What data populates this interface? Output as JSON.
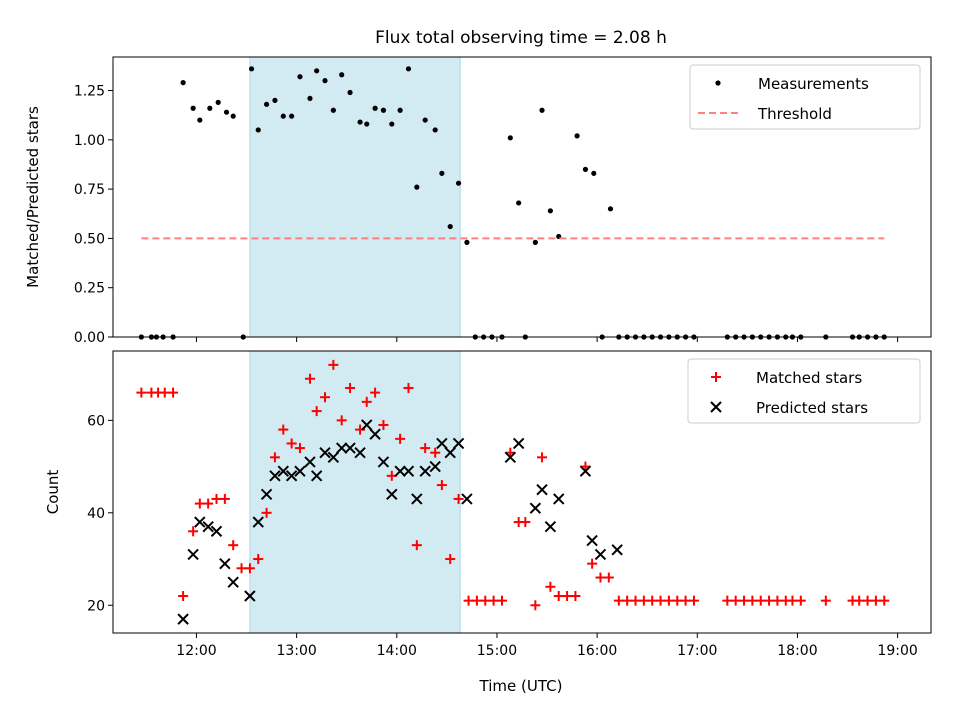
{
  "title": "Flux total observing time = 2.08 h",
  "colors": {
    "measurement": "#000000",
    "threshold": "#ff8080",
    "matched": "#ff0000",
    "predicted": "#000000",
    "shade": "#add8e6"
  },
  "chart_data": [
    {
      "type": "scatter",
      "panel": "top",
      "ylabel": "Matched/Predicted stars",
      "xlim": [
        "11:10",
        "19:20"
      ],
      "ylim": [
        0,
        1.42
      ],
      "yticks": [
        0.0,
        0.25,
        0.5,
        0.75,
        1.0,
        1.25
      ],
      "ytick_labels": [
        "0.00",
        "0.25",
        "0.50",
        "0.75",
        "1.00",
        "1.25"
      ],
      "shaded_interval": [
        "12:32",
        "14:38"
      ],
      "legend": {
        "position": "top-right",
        "entries": [
          "Measurements",
          "Threshold"
        ]
      },
      "series": [
        {
          "name": "Measurements",
          "marker": "dot",
          "points": [
            [
              "11:27",
              0
            ],
            [
              "11:33",
              0
            ],
            [
              "11:36",
              0
            ],
            [
              "11:40",
              0
            ],
            [
              "11:46",
              0
            ],
            [
              "11:52",
              1.29
            ],
            [
              "11:58",
              1.16
            ],
            [
              "12:02",
              1.1
            ],
            [
              "12:08",
              1.16
            ],
            [
              "12:13",
              1.19
            ],
            [
              "12:18",
              1.14
            ],
            [
              "12:22",
              1.12
            ],
            [
              "12:28",
              0
            ],
            [
              "12:33",
              1.36
            ],
            [
              "12:37",
              1.05
            ],
            [
              "12:42",
              1.18
            ],
            [
              "12:47",
              1.2
            ],
            [
              "12:52",
              1.12
            ],
            [
              "12:57",
              1.12
            ],
            [
              "13:02",
              1.32
            ],
            [
              "13:08",
              1.21
            ],
            [
              "13:12",
              1.35
            ],
            [
              "13:17",
              1.3
            ],
            [
              "13:22",
              1.15
            ],
            [
              "13:27",
              1.33
            ],
            [
              "13:32",
              1.24
            ],
            [
              "13:38",
              1.09
            ],
            [
              "13:42",
              1.08
            ],
            [
              "13:47",
              1.16
            ],
            [
              "13:52",
              1.15
            ],
            [
              "13:57",
              1.08
            ],
            [
              "14:02",
              1.15
            ],
            [
              "14:07",
              1.36
            ],
            [
              "14:12",
              0.76
            ],
            [
              "14:17",
              1.1
            ],
            [
              "14:23",
              1.05
            ],
            [
              "14:27",
              0.83
            ],
            [
              "14:32",
              0.56
            ],
            [
              "14:37",
              0.78
            ],
            [
              "14:42",
              0.48
            ],
            [
              "14:47",
              0
            ],
            [
              "14:52",
              0
            ],
            [
              "14:57",
              0
            ],
            [
              "15:03",
              0
            ],
            [
              "15:08",
              1.01
            ],
            [
              "15:13",
              0.68
            ],
            [
              "15:17",
              0
            ],
            [
              "15:23",
              0.48
            ],
            [
              "15:27",
              1.15
            ],
            [
              "15:32",
              0.64
            ],
            [
              "15:37",
              0.51
            ],
            [
              "15:48",
              1.02
            ],
            [
              "15:53",
              0.85
            ],
            [
              "15:58",
              0.83
            ],
            [
              "16:03",
              0
            ],
            [
              "16:08",
              0.65
            ],
            [
              "16:13",
              0
            ],
            [
              "16:18",
              0
            ],
            [
              "16:23",
              0
            ],
            [
              "16:28",
              0
            ],
            [
              "16:33",
              0
            ],
            [
              "16:38",
              0
            ],
            [
              "16:43",
              0
            ],
            [
              "16:48",
              0
            ],
            [
              "16:53",
              0
            ],
            [
              "16:58",
              0
            ],
            [
              "17:18",
              0
            ],
            [
              "17:23",
              0
            ],
            [
              "17:28",
              0
            ],
            [
              "17:33",
              0
            ],
            [
              "17:38",
              0
            ],
            [
              "17:43",
              0
            ],
            [
              "17:48",
              0
            ],
            [
              "17:53",
              0
            ],
            [
              "17:57",
              0
            ],
            [
              "18:02",
              0
            ],
            [
              "18:17",
              0
            ],
            [
              "18:33",
              0
            ],
            [
              "18:37",
              0
            ],
            [
              "18:42",
              0
            ],
            [
              "18:47",
              0
            ],
            [
              "18:52",
              0
            ]
          ]
        },
        {
          "name": "Threshold",
          "marker": "dashed-line",
          "points": [
            [
              "11:27",
              0.5
            ],
            [
              "18:52",
              0.5
            ]
          ]
        }
      ]
    },
    {
      "type": "scatter",
      "panel": "bottom",
      "xlabel": "Time (UTC)",
      "ylabel": "Count",
      "xlim": [
        "11:10",
        "19:20"
      ],
      "ylim": [
        14,
        75
      ],
      "xticks": [
        "12:00",
        "13:00",
        "14:00",
        "15:00",
        "16:00",
        "17:00",
        "18:00",
        "19:00"
      ],
      "yticks": [
        20,
        40,
        60
      ],
      "ytick_labels": [
        "20",
        "40",
        "60"
      ],
      "shaded_interval": [
        "12:32",
        "14:38"
      ],
      "legend": {
        "position": "top-right",
        "entries": [
          "Matched stars",
          "Predicted stars"
        ]
      },
      "series": [
        {
          "name": "Matched stars",
          "marker": "plus",
          "points": [
            [
              "11:27",
              66
            ],
            [
              "11:33",
              66
            ],
            [
              "11:37",
              66
            ],
            [
              "11:41",
              66
            ],
            [
              "11:46",
              66
            ],
            [
              "11:52",
              22
            ],
            [
              "11:58",
              36
            ],
            [
              "12:02",
              42
            ],
            [
              "12:07",
              42
            ],
            [
              "12:12",
              43
            ],
            [
              "12:17",
              43
            ],
            [
              "12:22",
              33
            ],
            [
              "12:27",
              28
            ],
            [
              "12:32",
              28
            ],
            [
              "12:37",
              30
            ],
            [
              "12:42",
              40
            ],
            [
              "12:47",
              52
            ],
            [
              "12:52",
              58
            ],
            [
              "12:57",
              55
            ],
            [
              "13:02",
              54
            ],
            [
              "13:08",
              69
            ],
            [
              "13:12",
              62
            ],
            [
              "13:17",
              65
            ],
            [
              "13:22",
              72
            ],
            [
              "13:27",
              60
            ],
            [
              "13:32",
              67
            ],
            [
              "13:38",
              58
            ],
            [
              "13:42",
              64
            ],
            [
              "13:47",
              66
            ],
            [
              "13:52",
              59
            ],
            [
              "13:57",
              48
            ],
            [
              "14:02",
              56
            ],
            [
              "14:07",
              67
            ],
            [
              "14:12",
              33
            ],
            [
              "14:17",
              54
            ],
            [
              "14:23",
              53
            ],
            [
              "14:27",
              46
            ],
            [
              "14:32",
              30
            ],
            [
              "14:37",
              43
            ],
            [
              "14:43",
              21
            ],
            [
              "14:48",
              21
            ],
            [
              "14:53",
              21
            ],
            [
              "14:58",
              21
            ],
            [
              "15:03",
              21
            ],
            [
              "15:08",
              53
            ],
            [
              "15:13",
              38
            ],
            [
              "15:17",
              38
            ],
            [
              "15:23",
              20
            ],
            [
              "15:27",
              52
            ],
            [
              "15:32",
              24
            ],
            [
              "15:37",
              22
            ],
            [
              "15:42",
              22
            ],
            [
              "15:47",
              22
            ],
            [
              "15:53",
              50
            ],
            [
              "15:57",
              29
            ],
            [
              "16:02",
              26
            ],
            [
              "16:07",
              26
            ],
            [
              "16:13",
              21
            ],
            [
              "16:18",
              21
            ],
            [
              "16:23",
              21
            ],
            [
              "16:28",
              21
            ],
            [
              "16:33",
              21
            ],
            [
              "16:38",
              21
            ],
            [
              "16:43",
              21
            ],
            [
              "16:48",
              21
            ],
            [
              "16:53",
              21
            ],
            [
              "16:58",
              21
            ],
            [
              "17:18",
              21
            ],
            [
              "17:23",
              21
            ],
            [
              "17:28",
              21
            ],
            [
              "17:33",
              21
            ],
            [
              "17:38",
              21
            ],
            [
              "17:43",
              21
            ],
            [
              "17:48",
              21
            ],
            [
              "17:53",
              21
            ],
            [
              "17:57",
              21
            ],
            [
              "18:02",
              21
            ],
            [
              "18:17",
              21
            ],
            [
              "18:33",
              21
            ],
            [
              "18:37",
              21
            ],
            [
              "18:42",
              21
            ],
            [
              "18:47",
              21
            ],
            [
              "18:52",
              21
            ]
          ]
        },
        {
          "name": "Predicted stars",
          "marker": "x",
          "points": [
            [
              "11:52",
              17
            ],
            [
              "11:58",
              31
            ],
            [
              "12:02",
              38
            ],
            [
              "12:07",
              37
            ],
            [
              "12:12",
              36
            ],
            [
              "12:17",
              29
            ],
            [
              "12:22",
              25
            ],
            [
              "12:32",
              22
            ],
            [
              "12:37",
              38
            ],
            [
              "12:42",
              44
            ],
            [
              "12:47",
              48
            ],
            [
              "12:52",
              49
            ],
            [
              "12:57",
              48
            ],
            [
              "13:02",
              49
            ],
            [
              "13:08",
              51
            ],
            [
              "13:12",
              48
            ],
            [
              "13:17",
              53
            ],
            [
              "13:22",
              52
            ],
            [
              "13:27",
              54
            ],
            [
              "13:32",
              54
            ],
            [
              "13:38",
              53
            ],
            [
              "13:42",
              59
            ],
            [
              "13:47",
              57
            ],
            [
              "13:52",
              51
            ],
            [
              "13:57",
              44
            ],
            [
              "14:02",
              49
            ],
            [
              "14:07",
              49
            ],
            [
              "14:12",
              43
            ],
            [
              "14:17",
              49
            ],
            [
              "14:23",
              50
            ],
            [
              "14:27",
              55
            ],
            [
              "14:32",
              53
            ],
            [
              "14:37",
              55
            ],
            [
              "14:42",
              43
            ],
            [
              "15:08",
              52
            ],
            [
              "15:13",
              55
            ],
            [
              "15:23",
              41
            ],
            [
              "15:27",
              45
            ],
            [
              "15:32",
              37
            ],
            [
              "15:37",
              43
            ],
            [
              "15:53",
              49
            ],
            [
              "15:57",
              34
            ],
            [
              "16:02",
              31
            ],
            [
              "16:12",
              32
            ]
          ]
        }
      ]
    }
  ]
}
